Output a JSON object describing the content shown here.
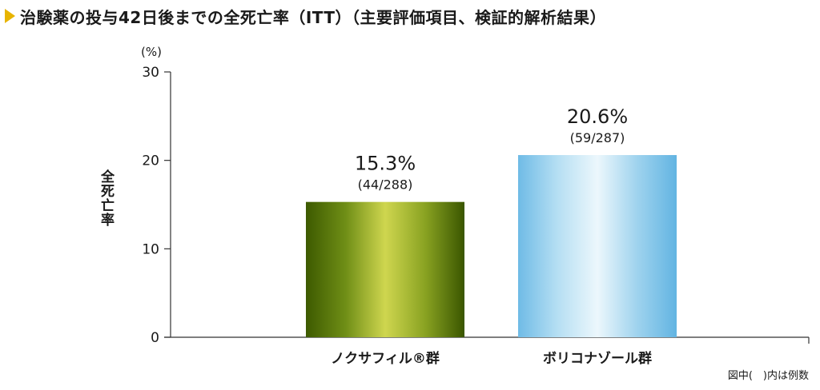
{
  "title": "治験薬の投与42日後までの全死亡率（ITT）（主要評価項目、検証的解析結果）",
  "footnote": "図中(　)内は例数",
  "chart_data": {
    "type": "bar",
    "categories": [
      "ノクサフィル®群",
      "ボリコナゾール群"
    ],
    "values": [
      15.3,
      20.6
    ],
    "value_labels": [
      "15.3%",
      "20.6%"
    ],
    "count_labels": [
      "(44/288)",
      "(59/287)"
    ],
    "ylabel": "全死亡率",
    "yunit": "(%)",
    "ylim": [
      0,
      30
    ],
    "yticks": [
      0,
      10,
      20,
      30
    ],
    "bar_colors": [
      [
        "#3d5a00",
        "#6f8e16",
        "#cfd64f",
        "#8aa322",
        "#3a5600"
      ],
      [
        "#6fbbe6",
        "#b6dff3",
        "#ecf7fc",
        "#9fd3ee",
        "#62b4e2"
      ]
    ],
    "grid": false,
    "legend": "none"
  }
}
